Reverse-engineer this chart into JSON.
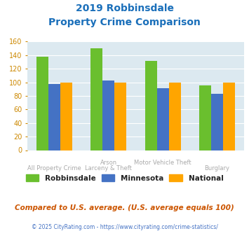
{
  "title_line1": "2019 Robbinsdale",
  "title_line2": "Property Crime Comparison",
  "category_top": [
    "",
    "Arson",
    "Motor Vehicle Theft",
    ""
  ],
  "category_bot": [
    "All Property Crime",
    "Larceny & Theft",
    "",
    "Burglary"
  ],
  "robbinsdale": [
    138,
    150,
    132,
    95
  ],
  "minnesota": [
    98,
    103,
    91,
    83
  ],
  "national": [
    100,
    100,
    100,
    100
  ],
  "colors": {
    "robbinsdale": "#6abf2e",
    "minnesota": "#4472c4",
    "national": "#ffa500"
  },
  "ylim": [
    0,
    160
  ],
  "yticks": [
    0,
    20,
    40,
    60,
    80,
    100,
    120,
    140,
    160
  ],
  "title_color": "#1a6fba",
  "bg_color": "#dce9f0",
  "tick_color": "#cc8800",
  "caption": "Compared to U.S. average. (U.S. average equals 100)",
  "footer": "© 2025 CityRating.com - https://www.cityrating.com/crime-statistics/",
  "legend_labels": [
    "Robbinsdale",
    "Minnesota",
    "National"
  ]
}
